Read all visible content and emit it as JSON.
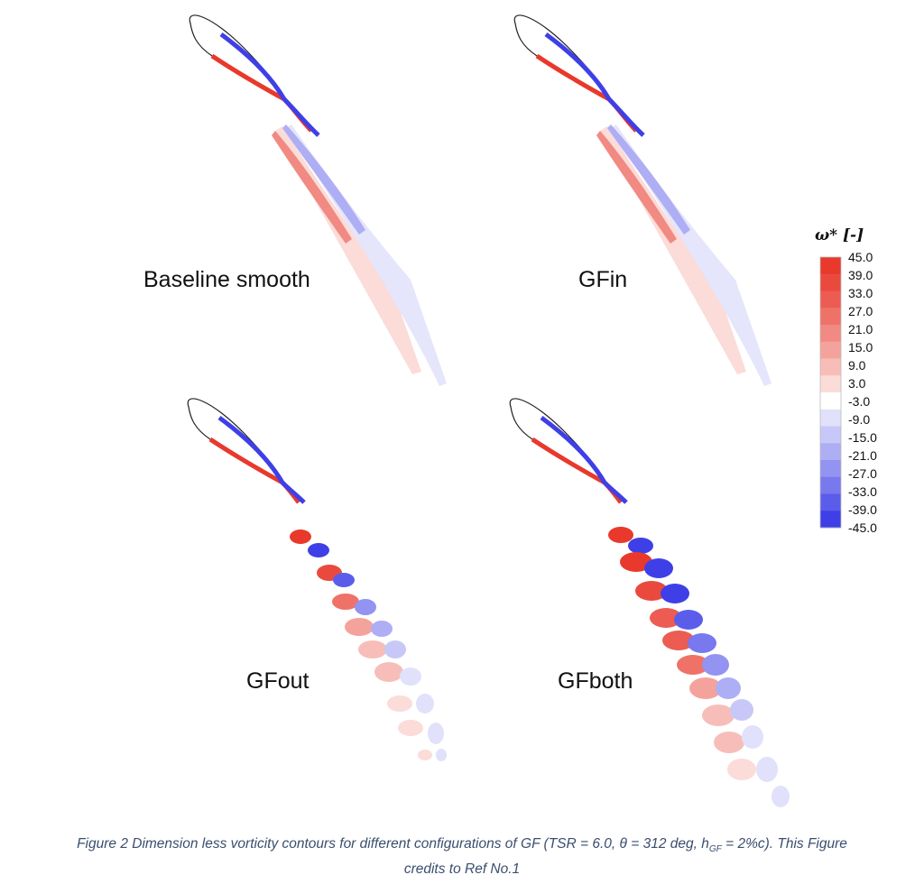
{
  "panels": [
    {
      "label": "Baseline smooth",
      "wake": "attached"
    },
    {
      "label": "GFin",
      "wake": "attached"
    },
    {
      "label": "GFout",
      "wake": "vortex-street"
    },
    {
      "label": "GFboth",
      "wake": "vortex-street-strong"
    }
  ],
  "colorbar": {
    "title": "ω* [-]",
    "ticks": [
      "45.0",
      "39.0",
      "33.0",
      "27.0",
      "21.0",
      "15.0",
      "9.0",
      "3.0",
      "-3.0",
      "-9.0",
      "-15.0",
      "-21.0",
      "-27.0",
      "-33.0",
      "-39.0",
      "-45.0"
    ],
    "colors": [
      "#e8392c",
      "#ea4a3e",
      "#ec5c52",
      "#ef7268",
      "#f18a82",
      "#f4a39c",
      "#f7beb9",
      "#fbdcd9",
      "#ffffff",
      "#e1e1fb",
      "#c8c8f8",
      "#aeaef5",
      "#9393f2",
      "#7878ef",
      "#5c5ceb",
      "#3f3fe8"
    ]
  },
  "caption": {
    "line1_pre": "Figure 2 Dimension less vorticity contours for different configurations of GF (TSR = 6.0, θ = 312 deg, h",
    "line1_sub": "GF",
    "line1_post": " = 2%c). This Figure",
    "line2": "credits to Ref No.1"
  }
}
